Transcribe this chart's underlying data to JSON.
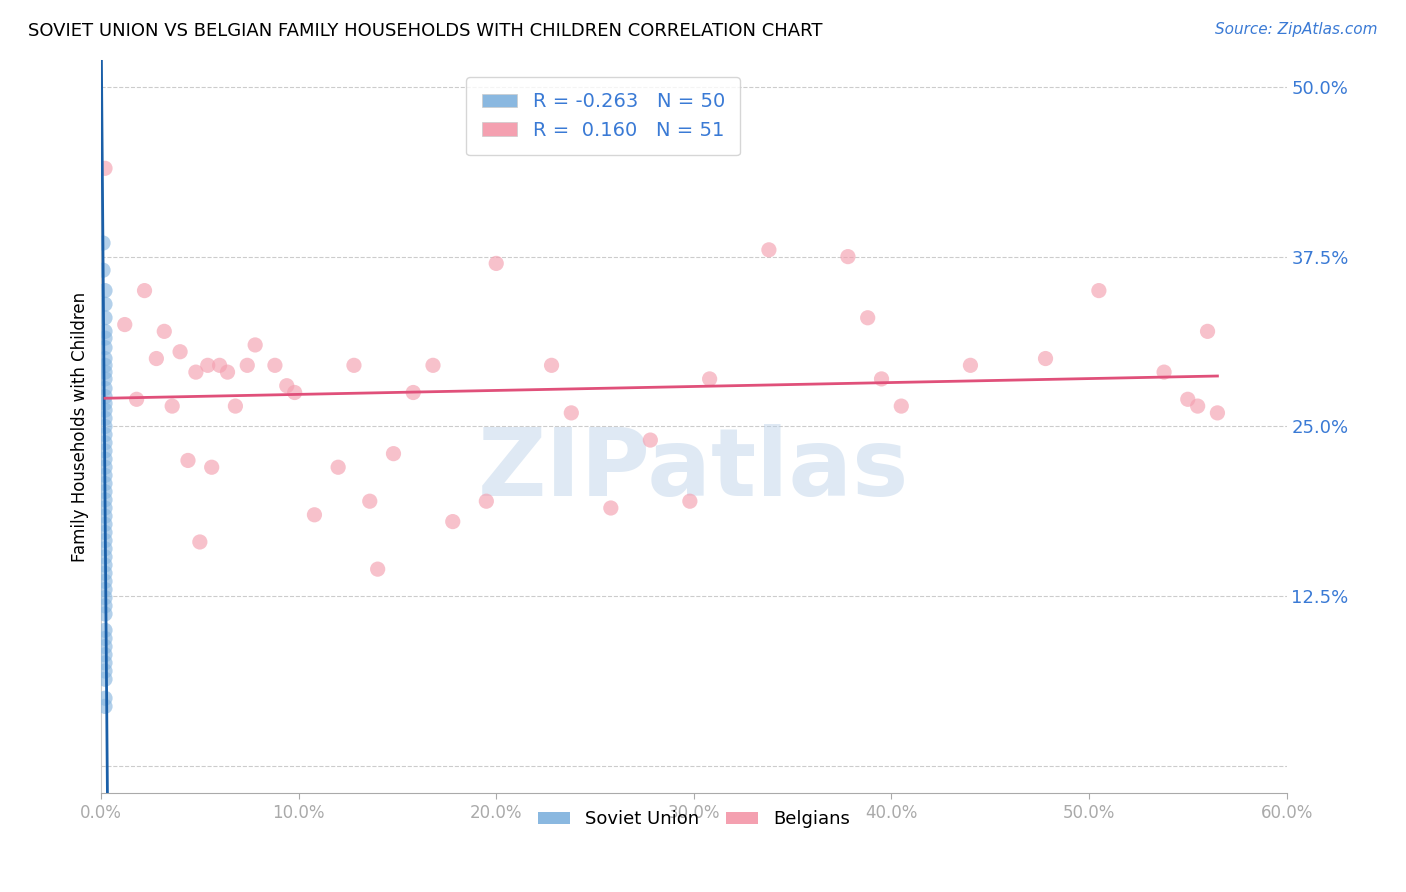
{
  "title": "SOVIET UNION VS BELGIAN FAMILY HOUSEHOLDS WITH CHILDREN CORRELATION CHART",
  "source": "Source: ZipAtlas.com",
  "ylabel": "Family Households with Children",
  "xlim": [
    0.0,
    0.6
  ],
  "ylim": [
    -0.02,
    0.52
  ],
  "plot_ylim": [
    0.0,
    0.52
  ],
  "yticks": [
    0.0,
    0.125,
    0.25,
    0.375,
    0.5
  ],
  "ytick_labels_right": [
    "",
    "12.5%",
    "25.0%",
    "37.5%",
    "50.0%"
  ],
  "xticks": [
    0.0,
    0.1,
    0.2,
    0.3,
    0.4,
    0.5,
    0.6
  ],
  "xtick_labels": [
    "0.0%",
    "10.0%",
    "20.0%",
    "30.0%",
    "40.0%",
    "50.0%",
    "60.0%"
  ],
  "watermark_text": "ZIPatlas",
  "soviet_color": "#8ab8e0",
  "belgian_color": "#f4a0b0",
  "soviet_line_color": "#1a5fa8",
  "belgian_line_color": "#e0507a",
  "soviet_scatter": [
    [
      0.001,
      0.385
    ],
    [
      0.001,
      0.365
    ],
    [
      0.002,
      0.35
    ],
    [
      0.002,
      0.34
    ],
    [
      0.002,
      0.33
    ],
    [
      0.002,
      0.32
    ],
    [
      0.002,
      0.315
    ],
    [
      0.002,
      0.308
    ],
    [
      0.002,
      0.3
    ],
    [
      0.002,
      0.295
    ],
    [
      0.002,
      0.29
    ],
    [
      0.002,
      0.285
    ],
    [
      0.002,
      0.278
    ],
    [
      0.002,
      0.272
    ],
    [
      0.002,
      0.267
    ],
    [
      0.002,
      0.262
    ],
    [
      0.002,
      0.256
    ],
    [
      0.002,
      0.25
    ],
    [
      0.002,
      0.244
    ],
    [
      0.002,
      0.238
    ],
    [
      0.002,
      0.232
    ],
    [
      0.002,
      0.226
    ],
    [
      0.002,
      0.22
    ],
    [
      0.002,
      0.214
    ],
    [
      0.002,
      0.208
    ],
    [
      0.002,
      0.202
    ],
    [
      0.002,
      0.196
    ],
    [
      0.002,
      0.19
    ],
    [
      0.002,
      0.184
    ],
    [
      0.002,
      0.178
    ],
    [
      0.002,
      0.172
    ],
    [
      0.002,
      0.166
    ],
    [
      0.002,
      0.16
    ],
    [
      0.002,
      0.154
    ],
    [
      0.002,
      0.148
    ],
    [
      0.002,
      0.142
    ],
    [
      0.002,
      0.136
    ],
    [
      0.002,
      0.13
    ],
    [
      0.002,
      0.124
    ],
    [
      0.002,
      0.118
    ],
    [
      0.002,
      0.112
    ],
    [
      0.002,
      0.1
    ],
    [
      0.002,
      0.094
    ],
    [
      0.002,
      0.088
    ],
    [
      0.002,
      0.082
    ],
    [
      0.002,
      0.076
    ],
    [
      0.002,
      0.07
    ],
    [
      0.002,
      0.064
    ],
    [
      0.002,
      0.05
    ],
    [
      0.002,
      0.044
    ]
  ],
  "belgian_scatter": [
    [
      0.002,
      0.44
    ],
    [
      0.012,
      0.325
    ],
    [
      0.018,
      0.27
    ],
    [
      0.022,
      0.35
    ],
    [
      0.028,
      0.3
    ],
    [
      0.032,
      0.32
    ],
    [
      0.036,
      0.265
    ],
    [
      0.04,
      0.305
    ],
    [
      0.044,
      0.225
    ],
    [
      0.048,
      0.29
    ],
    [
      0.05,
      0.165
    ],
    [
      0.054,
      0.295
    ],
    [
      0.056,
      0.22
    ],
    [
      0.06,
      0.295
    ],
    [
      0.064,
      0.29
    ],
    [
      0.068,
      0.265
    ],
    [
      0.074,
      0.295
    ],
    [
      0.078,
      0.31
    ],
    [
      0.088,
      0.295
    ],
    [
      0.094,
      0.28
    ],
    [
      0.098,
      0.275
    ],
    [
      0.108,
      0.185
    ],
    [
      0.12,
      0.22
    ],
    [
      0.128,
      0.295
    ],
    [
      0.136,
      0.195
    ],
    [
      0.14,
      0.145
    ],
    [
      0.148,
      0.23
    ],
    [
      0.158,
      0.275
    ],
    [
      0.168,
      0.295
    ],
    [
      0.178,
      0.18
    ],
    [
      0.195,
      0.195
    ],
    [
      0.2,
      0.37
    ],
    [
      0.228,
      0.295
    ],
    [
      0.238,
      0.26
    ],
    [
      0.258,
      0.19
    ],
    [
      0.278,
      0.24
    ],
    [
      0.298,
      0.195
    ],
    [
      0.308,
      0.285
    ],
    [
      0.338,
      0.38
    ],
    [
      0.378,
      0.375
    ],
    [
      0.388,
      0.33
    ],
    [
      0.395,
      0.285
    ],
    [
      0.405,
      0.265
    ],
    [
      0.44,
      0.295
    ],
    [
      0.478,
      0.3
    ],
    [
      0.505,
      0.35
    ],
    [
      0.538,
      0.29
    ],
    [
      0.55,
      0.27
    ],
    [
      0.56,
      0.32
    ],
    [
      0.565,
      0.26
    ],
    [
      0.555,
      0.265
    ]
  ],
  "background_color": "#ffffff",
  "grid_color": "#cccccc",
  "title_fontsize": 13,
  "source_color": "#3a7ad5",
  "tick_color_right": "#3a7ad5",
  "tick_color_bottom": "#3a7ad5",
  "legend_label_color": "#3a7ad5",
  "soviet_reg_line": [
    -40.0,
    0.295
  ],
  "belgian_reg_line": [
    0.22,
    0.24
  ]
}
